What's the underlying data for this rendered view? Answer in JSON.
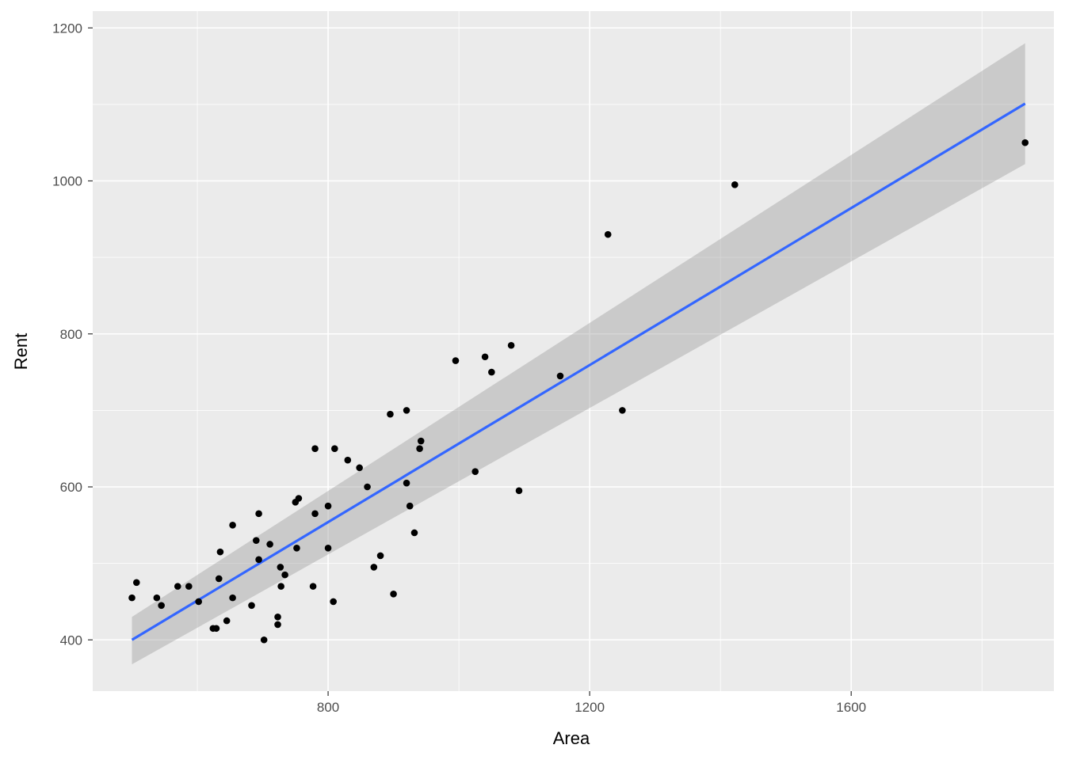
{
  "chart_data": {
    "type": "scatter",
    "xlabel": "Area",
    "ylabel": "Rent",
    "xlim": [
      440,
      1910
    ],
    "ylim": [
      333,
      1222
    ],
    "x_ticks": [
      800,
      1200,
      1600
    ],
    "x_tick_labels": [
      "800",
      "1200",
      "1600"
    ],
    "x_minor_ticks": [
      600,
      1000,
      1400,
      1800
    ],
    "y_ticks": [
      400,
      600,
      800,
      1000,
      1200
    ],
    "y_tick_labels": [
      "400",
      "600",
      "800",
      "1000",
      "1200"
    ],
    "y_minor_ticks": [
      500,
      700,
      900,
      1100
    ],
    "grid": true,
    "points": [
      {
        "x": 500,
        "y": 455
      },
      {
        "x": 507,
        "y": 475
      },
      {
        "x": 538,
        "y": 455
      },
      {
        "x": 545,
        "y": 445
      },
      {
        "x": 570,
        "y": 470
      },
      {
        "x": 587,
        "y": 470
      },
      {
        "x": 602,
        "y": 450
      },
      {
        "x": 624,
        "y": 415
      },
      {
        "x": 629,
        "y": 415
      },
      {
        "x": 633,
        "y": 480
      },
      {
        "x": 635,
        "y": 515
      },
      {
        "x": 645,
        "y": 425
      },
      {
        "x": 654,
        "y": 455
      },
      {
        "x": 654,
        "y": 550
      },
      {
        "x": 683,
        "y": 445
      },
      {
        "x": 690,
        "y": 530
      },
      {
        "x": 694,
        "y": 505
      },
      {
        "x": 694,
        "y": 565
      },
      {
        "x": 702,
        "y": 400
      },
      {
        "x": 711,
        "y": 525
      },
      {
        "x": 723,
        "y": 430
      },
      {
        "x": 723,
        "y": 420
      },
      {
        "x": 727,
        "y": 495
      },
      {
        "x": 728,
        "y": 470
      },
      {
        "x": 734,
        "y": 485
      },
      {
        "x": 752,
        "y": 520
      },
      {
        "x": 750,
        "y": 580
      },
      {
        "x": 755,
        "y": 585
      },
      {
        "x": 777,
        "y": 470
      },
      {
        "x": 780,
        "y": 565
      },
      {
        "x": 780,
        "y": 650
      },
      {
        "x": 808,
        "y": 450
      },
      {
        "x": 800,
        "y": 520
      },
      {
        "x": 800,
        "y": 575
      },
      {
        "x": 810,
        "y": 650
      },
      {
        "x": 830,
        "y": 635
      },
      {
        "x": 848,
        "y": 625
      },
      {
        "x": 860,
        "y": 600
      },
      {
        "x": 870,
        "y": 495
      },
      {
        "x": 880,
        "y": 510
      },
      {
        "x": 895,
        "y": 695
      },
      {
        "x": 900,
        "y": 460
      },
      {
        "x": 920,
        "y": 700
      },
      {
        "x": 920,
        "y": 605
      },
      {
        "x": 925,
        "y": 575
      },
      {
        "x": 932,
        "y": 540
      },
      {
        "x": 940,
        "y": 650
      },
      {
        "x": 942,
        "y": 660
      },
      {
        "x": 995,
        "y": 765
      },
      {
        "x": 1025,
        "y": 620
      },
      {
        "x": 1040,
        "y": 770
      },
      {
        "x": 1050,
        "y": 750
      },
      {
        "x": 1080,
        "y": 785
      },
      {
        "x": 1092,
        "y": 595
      },
      {
        "x": 1155,
        "y": 745
      },
      {
        "x": 1228,
        "y": 930
      },
      {
        "x": 1250,
        "y": 700
      },
      {
        "x": 1422,
        "y": 995
      },
      {
        "x": 1866,
        "y": 1050
      }
    ],
    "fit": {
      "method": "lm",
      "x_range": [
        500,
        1866
      ],
      "line": [
        400,
        1101
      ],
      "ci_lower": [
        368,
        1022
      ],
      "ci_upper": [
        430,
        1180
      ]
    },
    "colors": {
      "panel_bg": "#ebebeb",
      "grid": "#ffffff",
      "points": "#000000",
      "fit_line": "#3366ff",
      "ci_band": "#999999"
    }
  }
}
